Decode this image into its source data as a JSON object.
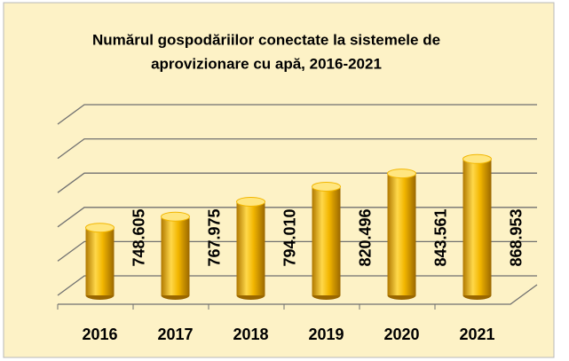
{
  "chart_data": {
    "type": "bar3d",
    "title": [
      "Numărul gospodăriilor conectate la sistemele de",
      "aprovizionare cu apă, 2016-2021"
    ],
    "categories": [
      "2016",
      "2017",
      "2018",
      "2019",
      "2020",
      "2021"
    ],
    "values": [
      748605,
      767975,
      794010,
      820496,
      843561,
      868953
    ],
    "value_labels": [
      "748.605",
      "767.975",
      "794.010",
      "820.496",
      "843.561",
      "868.953"
    ],
    "color": "#f2b600",
    "ylim": [
      630000,
      930000
    ],
    "yticks": [
      630000,
      690000,
      750000,
      810000,
      870000,
      930000
    ],
    "grid": true
  }
}
